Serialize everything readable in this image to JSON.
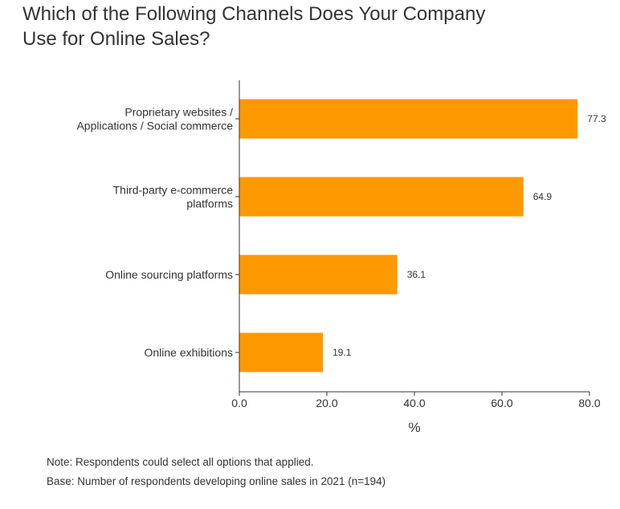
{
  "title_lines": [
    "Which of the Following Channels Does Your Company",
    "Use for Online Sales?"
  ],
  "chart_data": {
    "type": "bar",
    "orientation": "horizontal",
    "categories": [
      [
        "Proprietary websites /",
        "Applications / Social commerce"
      ],
      [
        "Third-party e-commerce",
        "platforms"
      ],
      [
        "Online sourcing platforms"
      ],
      [
        "Online exhibitions"
      ]
    ],
    "values": [
      77.3,
      64.9,
      36.1,
      19.1
    ],
    "value_labels": [
      "77.3",
      "64.9",
      "36.1",
      "19.1"
    ],
    "xlabel": "%",
    "ylabel": "",
    "xlim": [
      0,
      80
    ],
    "xticks": [
      0,
      20,
      40,
      60,
      80
    ],
    "xtick_labels": [
      "0.0",
      "20.0",
      "40.0",
      "60.0",
      "80.0"
    ],
    "grid": false,
    "bar_color": "#FF9900"
  },
  "notes": {
    "note": "Note: Respondents could select all options that applied.",
    "base": "Base: Number of respondents developing online sales in 2021 (n=194)"
  }
}
